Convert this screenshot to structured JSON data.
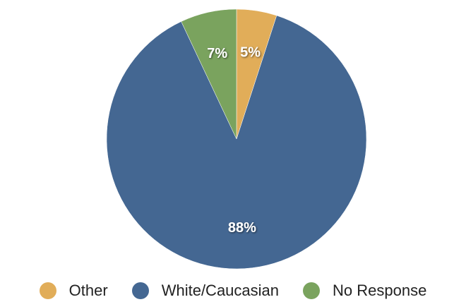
{
  "chart_data": {
    "type": "pie",
    "categories": [
      "Other",
      "White/Caucasian",
      "No Response"
    ],
    "values": [
      5,
      88,
      7
    ],
    "labels": [
      "5%",
      "88%",
      "7%"
    ],
    "colors": [
      "#E1AD59",
      "#446792",
      "#7AA35E"
    ],
    "legend_position": "bottom",
    "title": ""
  },
  "legend": {
    "items": [
      {
        "label": "Other",
        "color": "#E1AD59"
      },
      {
        "label": "White/Caucasian",
        "color": "#446792"
      },
      {
        "label": "No Response",
        "color": "#7AA35E"
      }
    ]
  }
}
